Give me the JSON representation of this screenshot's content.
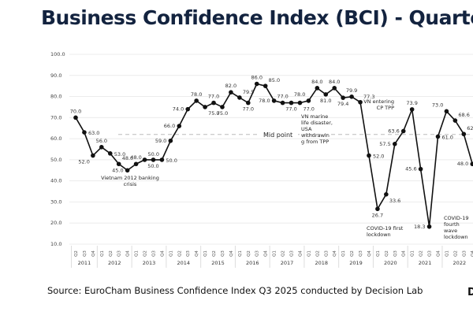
{
  "header": {
    "title": "Business Confidence Index (BCI) - Quarter"
  },
  "footer": {
    "source": "Source: EuroCham Business Confidence Index Q3 2025 conducted by Decision Lab",
    "logo_text": "D"
  },
  "chart_data": {
    "type": "line",
    "title": "Business Confidence Index (BCI) - Quarter",
    "xlabel": "",
    "ylabel": "",
    "ylim": [
      10,
      100
    ],
    "y_ticks": [
      "100.0",
      "90.0",
      "80.0",
      "70.0",
      "60.0",
      "50.0",
      "40.0",
      "30.0",
      "20.0",
      "10.0"
    ],
    "grid": true,
    "years": [
      "2011",
      "2012",
      "2013",
      "2014",
      "2015",
      "2016",
      "2017",
      "2018",
      "2019",
      "2020",
      "2021",
      "2022"
    ],
    "quarters": [
      "Q2",
      "Q3",
      "Q4",
      "Q1",
      "Q2",
      "Q3",
      "Q4",
      "Q1",
      "Q2",
      "Q3",
      "Q4",
      "Q1",
      "Q2",
      "Q3",
      "Q4",
      "Q1",
      "Q2",
      "Q3",
      "Q4",
      "Q1",
      "Q2",
      "Q3",
      "Q4",
      "Q1",
      "Q2",
      "Q3",
      "Q4",
      "Q1",
      "Q2",
      "Q3",
      "Q4",
      "Q1",
      "Q2",
      "Q3",
      "Q4",
      "Q1",
      "Q2",
      "Q3",
      "Q4",
      "Q1",
      "Q2",
      "Q3",
      "Q4",
      "Q1",
      "Q2",
      "Q3",
      "Q4"
    ],
    "series": [
      {
        "name": "BCI",
        "color": "#111111",
        "values": [
          70,
          63,
          52,
          56,
          53,
          48,
          45,
          48,
          50,
          50,
          50,
          59,
          66,
          74,
          78,
          75,
          77,
          75,
          82,
          79.5,
          77,
          86,
          85,
          78,
          77,
          77,
          77,
          78,
          84,
          81,
          84,
          79.4,
          79.9,
          77.3,
          52,
          26.7,
          33.6,
          57.5,
          63.6,
          73.9,
          45.6,
          18.3,
          61,
          73,
          68.6,
          62.2,
          48
        ],
        "labels": [
          "70.0",
          "63.0",
          "52.0",
          "56.0",
          "53.0",
          "48.0",
          "45.0",
          "48.0",
          "50.0",
          "50.0",
          "50.0",
          "59.0",
          "66.0",
          "74.0",
          "78.0",
          "75.0",
          "77.0",
          "75.0",
          "82.0",
          "79.5",
          "77.0",
          "86.0",
          "85.0",
          "78.0",
          "77.0",
          "77.0",
          "77.0",
          "78.0",
          "84.0",
          "81.0",
          "84.0",
          "79.4",
          "79.9",
          "77.3",
          "52.0",
          "26.7",
          "33.6",
          "57.5",
          "63.6",
          "73.9",
          "45.6",
          "18.3",
          "61.0",
          "73.0",
          "68.6",
          "62.2",
          "48.0"
        ]
      }
    ],
    "midline": {
      "value": 62,
      "label": "Mid point",
      "color": "#bbbbbb"
    },
    "annotations": [
      {
        "lines": [
          "Vietnam 2012 banking",
          "crisis"
        ]
      },
      {
        "lines": [
          "VN marine",
          "life disaster,",
          "USA",
          "withdrawin",
          "g from TPP"
        ]
      },
      {
        "lines": [
          "COVID-19 first",
          "lockdown"
        ]
      },
      {
        "lines": [
          "VN entering",
          "CP TPP"
        ]
      },
      {
        "lines": [
          "COVID-19",
          "fourth",
          "wave",
          "lockdown"
        ]
      }
    ]
  }
}
